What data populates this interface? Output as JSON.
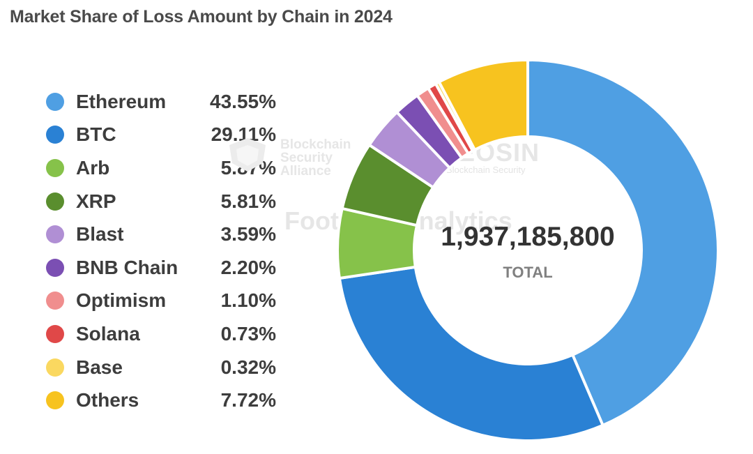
{
  "chart_data": {
    "type": "pie",
    "title": "Market Share of Loss Amount by Chain in 2024",
    "total": "1,937,185,800",
    "total_label": "TOTAL",
    "legend_position": "left",
    "categories": [
      "Ethereum",
      "BTC",
      "Arb",
      "XRP",
      "Blast",
      "BNB Chain",
      "Optimism",
      "Solana",
      "Base",
      "Others"
    ],
    "values": [
      43.55,
      29.11,
      5.87,
      5.81,
      3.59,
      2.2,
      1.1,
      0.73,
      0.32,
      7.72
    ],
    "value_labels": [
      "43.55%",
      "29.11%",
      "5.87%",
      "5.81%",
      "3.59%",
      "2.20%",
      "1.10%",
      "0.73%",
      "0.32%",
      "7.72%"
    ],
    "colors": [
      "#4f9fe3",
      "#2a81d4",
      "#86c24a",
      "#5a8e2e",
      "#b08fd4",
      "#7b4fb3",
      "#f08e8e",
      "#e04848",
      "#fad860",
      "#f7c31f"
    ]
  },
  "watermarks": {
    "bsa": "Blockchain\nSecurity\nAlliance",
    "beosin": "BEOSIN",
    "beosin_sub": "Blockchain Security",
    "footprint": "Footprint Analytics"
  }
}
